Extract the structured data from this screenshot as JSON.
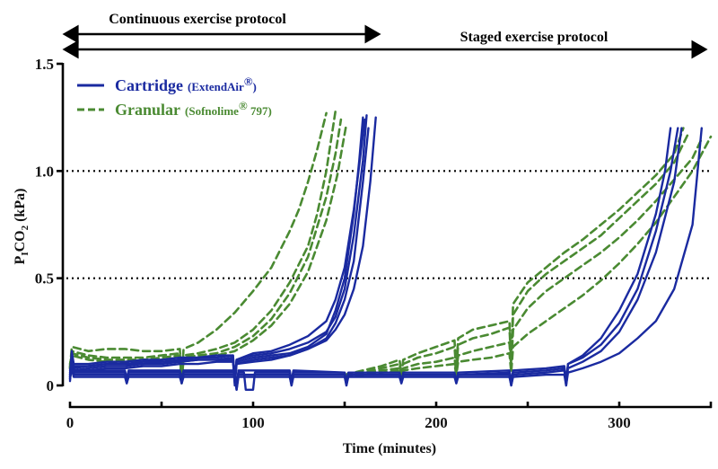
{
  "chart_data": {
    "type": "line",
    "title": "",
    "xlabel": "Time (minutes)",
    "ylabel_main": "P",
    "ylabel_sub_i": "I",
    "ylabel_co": "CO",
    "ylabel_sub_2": "2",
    "ylabel_unit": " (kPa)",
    "xlim": [
      0,
      350
    ],
    "ylim": [
      0,
      1.5
    ],
    "x_ticks": [
      0,
      50,
      100,
      150,
      200,
      250,
      300,
      350
    ],
    "x_tick_labels": [
      "0",
      "",
      "100",
      "",
      "200",
      "",
      "300",
      ""
    ],
    "y_ticks": [
      0,
      0.5,
      1.0,
      1.5
    ],
    "y_tick_labels": [
      "0",
      "0.5",
      "1.0",
      "1.5"
    ],
    "reference_lines": [
      0.5,
      1.0
    ],
    "grid": false,
    "legend_position": "top-left",
    "colors": {
      "cartridge": "#1a2aa0",
      "granular": "#4a8a32",
      "axis": "#000000"
    },
    "protocols": [
      {
        "label": "Continuous exercise protocol",
        "start": 0,
        "end": 170
      },
      {
        "label": "Staged exercise protocol",
        "start": 0,
        "end": 350
      }
    ],
    "legend": [
      {
        "key": "cartridge",
        "name": "Cartridge",
        "detail": "(ExtendAir",
        "reg": "®",
        "detail_end": ")",
        "style": "solid"
      },
      {
        "key": "granular",
        "name": "Granular",
        "detail": "(Sofnolime",
        "reg": "®",
        "detail_end": " 797)",
        "style": "dashed"
      }
    ],
    "series": [
      {
        "name": "Cartridge continuous 1",
        "group": "cartridge",
        "x": [
          0,
          1,
          2,
          10,
          20,
          30,
          40,
          50,
          60,
          70,
          80,
          89,
          90,
          91,
          100,
          110,
          120,
          130,
          140,
          145,
          150,
          155,
          160,
          162
        ],
        "y": [
          0.02,
          0.14,
          0.08,
          0.09,
          0.1,
          0.1,
          0.11,
          0.11,
          0.12,
          0.13,
          0.13,
          0.14,
          0.02,
          0.12,
          0.14,
          0.15,
          0.17,
          0.2,
          0.25,
          0.32,
          0.45,
          0.7,
          1.05,
          1.26
        ]
      },
      {
        "name": "Cartridge continuous 2",
        "group": "cartridge",
        "x": [
          0,
          1,
          2,
          10,
          20,
          30,
          40,
          50,
          60,
          70,
          80,
          89,
          90,
          91,
          100,
          110,
          120,
          130,
          140,
          145,
          150,
          155,
          158,
          160
        ],
        "y": [
          0.04,
          0.13,
          0.07,
          0.08,
          0.09,
          0.09,
          0.1,
          0.1,
          0.11,
          0.12,
          0.12,
          0.13,
          0.0,
          0.11,
          0.13,
          0.14,
          0.15,
          0.18,
          0.24,
          0.35,
          0.5,
          0.8,
          1.05,
          1.25
        ]
      },
      {
        "name": "Cartridge continuous 3",
        "group": "cartridge",
        "x": [
          0,
          1,
          2,
          10,
          20,
          30,
          40,
          50,
          60,
          70,
          80,
          89,
          90,
          91,
          100,
          110,
          120,
          130,
          140,
          145,
          150,
          155,
          160,
          164,
          167
        ],
        "y": [
          0.05,
          0.15,
          0.09,
          0.09,
          0.1,
          0.1,
          0.1,
          0.11,
          0.11,
          0.12,
          0.12,
          0.12,
          0.02,
          0.1,
          0.12,
          0.13,
          0.14,
          0.17,
          0.21,
          0.26,
          0.33,
          0.45,
          0.65,
          0.95,
          1.25
        ]
      },
      {
        "name": "Cartridge continuous 4",
        "group": "cartridge",
        "x": [
          0,
          1,
          2,
          10,
          20,
          30,
          40,
          50,
          60,
          70,
          80,
          89,
          90,
          91,
          100,
          110,
          120,
          130,
          140,
          145,
          150,
          155,
          159,
          161
        ],
        "y": [
          0.03,
          0.16,
          0.1,
          0.1,
          0.11,
          0.11,
          0.12,
          0.12,
          0.13,
          0.13,
          0.14,
          0.14,
          0.03,
          0.12,
          0.15,
          0.16,
          0.19,
          0.23,
          0.3,
          0.4,
          0.55,
          0.82,
          1.1,
          1.24
        ]
      },
      {
        "name": "Cartridge continuous 5",
        "group": "cartridge",
        "x": [
          0,
          1,
          2,
          10,
          20,
          30,
          40,
          50,
          60,
          70,
          80,
          89,
          90,
          91,
          100,
          110,
          120,
          130,
          140,
          145,
          150,
          155,
          160,
          163
        ],
        "y": [
          0.06,
          0.12,
          0.06,
          0.07,
          0.08,
          0.08,
          0.09,
          0.09,
          0.1,
          0.1,
          0.11,
          0.11,
          0.01,
          0.1,
          0.11,
          0.12,
          0.14,
          0.17,
          0.22,
          0.29,
          0.4,
          0.58,
          0.95,
          1.2
        ]
      },
      {
        "name": "Cartridge staged 1",
        "group": "cartridge",
        "x": [
          0,
          1,
          2,
          30,
          31,
          32,
          60,
          61,
          62,
          90,
          91,
          92,
          95,
          96,
          100,
          101,
          120,
          121,
          122,
          150,
          151,
          152,
          180,
          181,
          182,
          210,
          211,
          212,
          240,
          241,
          242,
          260,
          270,
          271,
          272,
          280,
          290,
          300,
          310,
          320,
          325,
          328
        ],
        "y": [
          0.05,
          0.1,
          0.06,
          0.06,
          0.02,
          0.06,
          0.06,
          0.02,
          0.06,
          0.06,
          -0.02,
          0.06,
          0.06,
          -0.02,
          -0.02,
          0.06,
          0.06,
          0.01,
          0.06,
          0.06,
          0.01,
          0.05,
          0.05,
          0.02,
          0.05,
          0.05,
          0.02,
          0.05,
          0.06,
          0.02,
          0.06,
          0.07,
          0.08,
          0.02,
          0.1,
          0.14,
          0.22,
          0.35,
          0.52,
          0.8,
          1.0,
          1.2
        ]
      },
      {
        "name": "Cartridge staged 2",
        "group": "cartridge",
        "x": [
          0,
          1,
          2,
          30,
          31,
          32,
          60,
          61,
          62,
          90,
          91,
          92,
          120,
          121,
          122,
          150,
          151,
          152,
          180,
          181,
          182,
          210,
          211,
          212,
          240,
          241,
          242,
          260,
          270,
          271,
          272,
          280,
          290,
          300,
          310,
          320,
          328,
          332
        ],
        "y": [
          0.07,
          0.12,
          0.07,
          0.07,
          0.03,
          0.07,
          0.07,
          0.03,
          0.07,
          0.07,
          0.0,
          0.07,
          0.07,
          0.02,
          0.07,
          0.06,
          0.02,
          0.06,
          0.06,
          0.02,
          0.06,
          0.06,
          0.02,
          0.06,
          0.07,
          0.02,
          0.07,
          0.08,
          0.09,
          0.02,
          0.1,
          0.13,
          0.19,
          0.29,
          0.45,
          0.72,
          1.0,
          1.2
        ]
      },
      {
        "name": "Cartridge staged 3",
        "group": "cartridge",
        "x": [
          0,
          1,
          2,
          30,
          31,
          32,
          60,
          61,
          62,
          90,
          91,
          92,
          120,
          121,
          122,
          150,
          151,
          152,
          180,
          181,
          182,
          210,
          211,
          212,
          240,
          241,
          242,
          260,
          270,
          271,
          272,
          280,
          290,
          300,
          310,
          320,
          330,
          334
        ],
        "y": [
          0.04,
          0.09,
          0.05,
          0.05,
          0.01,
          0.05,
          0.05,
          0.01,
          0.05,
          0.05,
          -0.01,
          0.05,
          0.05,
          0.0,
          0.05,
          0.05,
          0.0,
          0.05,
          0.05,
          0.01,
          0.05,
          0.05,
          0.01,
          0.05,
          0.05,
          0.0,
          0.05,
          0.06,
          0.07,
          0.0,
          0.08,
          0.11,
          0.16,
          0.25,
          0.4,
          0.62,
          0.95,
          1.2
        ]
      },
      {
        "name": "Cartridge staged 4",
        "group": "cartridge",
        "x": [
          0,
          1,
          2,
          30,
          31,
          32,
          60,
          61,
          62,
          90,
          91,
          92,
          120,
          121,
          122,
          150,
          151,
          152,
          180,
          181,
          182,
          210,
          211,
          212,
          240,
          241,
          242,
          260,
          270,
          271,
          272,
          280,
          290,
          300,
          310,
          320,
          330,
          340,
          345
        ],
        "y": [
          0.03,
          0.08,
          0.04,
          0.04,
          0.01,
          0.04,
          0.04,
          0.01,
          0.04,
          0.04,
          -0.02,
          0.04,
          0.04,
          0.0,
          0.04,
          0.04,
          0.0,
          0.04,
          0.04,
          0.01,
          0.04,
          0.04,
          0.01,
          0.04,
          0.04,
          0.0,
          0.04,
          0.05,
          0.05,
          0.0,
          0.06,
          0.08,
          0.11,
          0.15,
          0.22,
          0.3,
          0.45,
          0.75,
          1.2
        ]
      },
      {
        "name": "Granular continuous 1",
        "group": "granular",
        "x": [
          0,
          1,
          10,
          20,
          30,
          40,
          50,
          60,
          61,
          62,
          70,
          80,
          90,
          100,
          110,
          120,
          125,
          130,
          135,
          140
        ],
        "y": [
          0.08,
          0.18,
          0.16,
          0.17,
          0.17,
          0.16,
          0.16,
          0.17,
          0.02,
          0.17,
          0.2,
          0.26,
          0.34,
          0.44,
          0.55,
          0.72,
          0.82,
          0.95,
          1.1,
          1.27
        ]
      },
      {
        "name": "Granular continuous 2",
        "group": "granular",
        "x": [
          0,
          1,
          10,
          20,
          30,
          40,
          50,
          60,
          61,
          62,
          70,
          80,
          90,
          100,
          110,
          120,
          130,
          135,
          140,
          145
        ],
        "y": [
          0.08,
          0.16,
          0.14,
          0.13,
          0.13,
          0.13,
          0.14,
          0.15,
          0.01,
          0.14,
          0.15,
          0.17,
          0.2,
          0.26,
          0.35,
          0.48,
          0.65,
          0.8,
          1.0,
          1.28
        ]
      },
      {
        "name": "Granular continuous 3",
        "group": "granular",
        "x": [
          0,
          1,
          10,
          20,
          30,
          40,
          50,
          60,
          61,
          62,
          70,
          80,
          90,
          100,
          110,
          120,
          130,
          140,
          145,
          148
        ],
        "y": [
          0.09,
          0.15,
          0.13,
          0.12,
          0.12,
          0.12,
          0.13,
          0.14,
          0.02,
          0.13,
          0.14,
          0.15,
          0.18,
          0.23,
          0.31,
          0.43,
          0.6,
          0.88,
          1.08,
          1.24
        ]
      },
      {
        "name": "Granular continuous 4",
        "group": "granular",
        "x": [
          0,
          1,
          10,
          20,
          30,
          40,
          50,
          60,
          61,
          62,
          70,
          80,
          90,
          100,
          110,
          120,
          130,
          140,
          146,
          151
        ],
        "y": [
          0.1,
          0.14,
          0.12,
          0.11,
          0.11,
          0.11,
          0.12,
          0.13,
          0.02,
          0.12,
          0.13,
          0.14,
          0.16,
          0.21,
          0.28,
          0.38,
          0.53,
          0.77,
          0.98,
          1.22
        ]
      },
      {
        "name": "Granular staged 1",
        "group": "granular",
        "x": [
          150,
          160,
          170,
          180,
          181,
          182,
          190,
          200,
          210,
          211,
          212,
          220,
          230,
          240,
          241,
          242,
          250,
          260,
          270,
          280,
          290,
          300,
          310,
          320,
          330,
          335
        ],
        "y": [
          0.05,
          0.07,
          0.09,
          0.12,
          0.05,
          0.12,
          0.15,
          0.18,
          0.21,
          0.08,
          0.22,
          0.26,
          0.28,
          0.3,
          0.12,
          0.38,
          0.48,
          0.55,
          0.62,
          0.68,
          0.75,
          0.82,
          0.9,
          0.98,
          1.08,
          1.2
        ]
      },
      {
        "name": "Granular staged 2",
        "group": "granular",
        "x": [
          150,
          160,
          170,
          180,
          181,
          182,
          190,
          200,
          210,
          211,
          212,
          220,
          230,
          240,
          241,
          242,
          250,
          260,
          270,
          280,
          290,
          300,
          310,
          320,
          330,
          338
        ],
        "y": [
          0.05,
          0.06,
          0.08,
          0.1,
          0.04,
          0.1,
          0.13,
          0.15,
          0.18,
          0.07,
          0.19,
          0.22,
          0.24,
          0.27,
          0.1,
          0.33,
          0.44,
          0.52,
          0.58,
          0.64,
          0.7,
          0.78,
          0.86,
          0.94,
          1.04,
          1.18
        ]
      },
      {
        "name": "Granular staged 3",
        "group": "granular",
        "x": [
          150,
          160,
          170,
          180,
          181,
          182,
          190,
          200,
          210,
          211,
          212,
          220,
          230,
          240,
          241,
          242,
          250,
          260,
          270,
          280,
          290,
          300,
          310,
          320,
          330,
          340,
          345
        ],
        "y": [
          0.05,
          0.06,
          0.07,
          0.08,
          0.04,
          0.08,
          0.1,
          0.11,
          0.13,
          0.06,
          0.14,
          0.16,
          0.18,
          0.2,
          0.08,
          0.26,
          0.36,
          0.44,
          0.5,
          0.56,
          0.62,
          0.69,
          0.77,
          0.86,
          0.96,
          1.06,
          1.15
        ]
      },
      {
        "name": "Granular staged 4",
        "group": "granular",
        "x": [
          150,
          160,
          170,
          180,
          181,
          182,
          190,
          200,
          210,
          211,
          212,
          220,
          230,
          240,
          241,
          242,
          250,
          260,
          270,
          280,
          290,
          300,
          310,
          320,
          330,
          340,
          350
        ],
        "y": [
          0.04,
          0.05,
          0.06,
          0.07,
          0.03,
          0.07,
          0.08,
          0.09,
          0.1,
          0.05,
          0.11,
          0.12,
          0.13,
          0.15,
          0.06,
          0.18,
          0.24,
          0.3,
          0.36,
          0.42,
          0.49,
          0.57,
          0.66,
          0.76,
          0.88,
          1.0,
          1.16
        ]
      }
    ]
  }
}
